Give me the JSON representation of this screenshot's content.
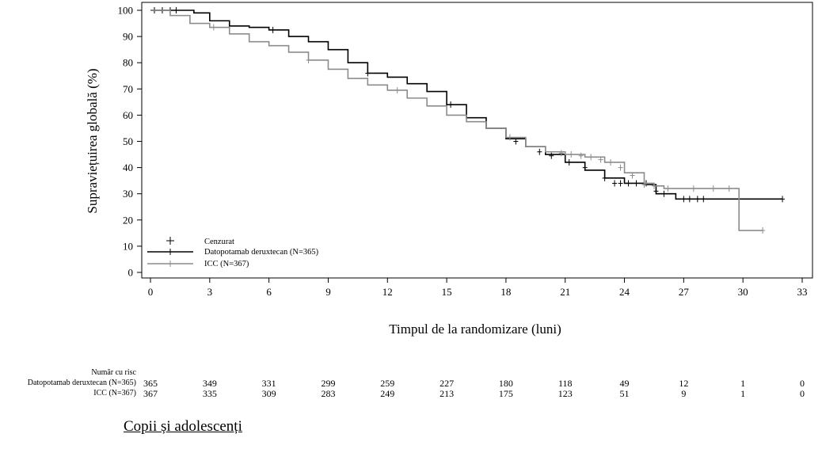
{
  "chart_data": {
    "type": "line",
    "title": "",
    "xlabel": "Timpul de la randomizare (luni)",
    "ylabel": "Supraviețuirea globală (%)",
    "xlim": [
      0,
      33
    ],
    "ylim": [
      0,
      100
    ],
    "x_ticks": [
      "0",
      "3",
      "6",
      "9",
      "12",
      "15",
      "18",
      "21",
      "24",
      "27",
      "30",
      "33"
    ],
    "y_ticks": [
      "0",
      "10",
      "20",
      "30",
      "40",
      "50",
      "60",
      "70",
      "80",
      "90",
      "100"
    ],
    "grid": false,
    "legend_position": "bottom-left",
    "censor_label": "Cenzurat",
    "series": [
      {
        "name": "Datopotamab deruxtecan (N=365)",
        "color": "#000000",
        "x": [
          0,
          1.5,
          2.2,
          3.0,
          4.0,
          5.0,
          6.0,
          7.0,
          8.0,
          9.0,
          10.0,
          11.0,
          12.0,
          13.0,
          14.0,
          15.0,
          16.0,
          17.0,
          18.0,
          19.0,
          20.0,
          21.0,
          22.0,
          23.0,
          24.0,
          25.0,
          25.6,
          26.6,
          28.0,
          30.0,
          32.0
        ],
        "y": [
          100,
          100,
          99,
          96,
          94,
          93.5,
          92.5,
          90,
          88,
          85,
          80,
          76,
          74.5,
          72,
          69,
          64,
          59,
          55,
          51,
          48,
          45,
          42,
          39,
          36,
          34,
          33.5,
          30,
          28,
          28,
          28,
          28
        ],
        "censored_x": [
          0.2,
          0.6,
          1.0,
          1.3,
          6.2,
          11.0,
          15.2,
          18.5,
          19.7,
          20.3,
          21.2,
          22.0,
          23.0,
          23.5,
          23.8,
          24.2,
          24.6,
          25.1,
          25.6,
          26.0,
          27.0,
          27.3,
          27.7,
          28.0,
          32.0
        ],
        "censored_y": [
          100,
          100,
          100,
          100,
          92.5,
          76,
          64,
          50,
          46,
          44.5,
          42,
          40,
          36,
          34,
          34,
          34,
          34,
          34,
          31,
          30,
          28,
          28,
          28,
          28,
          28
        ]
      },
      {
        "name": "ICC (N=367)",
        "color": "#8c8c8c",
        "x": [
          0,
          1.0,
          2.0,
          3.0,
          4.0,
          5.0,
          6.0,
          7.0,
          8.0,
          9.0,
          10.0,
          11.0,
          12.0,
          13.0,
          14.0,
          15.0,
          16.0,
          17.0,
          18.0,
          19.0,
          20.0,
          21.0,
          22.0,
          23.0,
          24.0,
          25.0,
          25.5,
          26.0,
          27.0,
          28.0,
          29.5,
          29.8,
          31.0
        ],
        "y": [
          100,
          98,
          95,
          93.5,
          91,
          88,
          86.5,
          84,
          81,
          77.5,
          74,
          71.5,
          69.5,
          66.5,
          63.5,
          60,
          57.5,
          55,
          51.5,
          48,
          46,
          45,
          44,
          42,
          38,
          34,
          33,
          32,
          32,
          32,
          32,
          16,
          16
        ],
        "censored_x": [
          3.2,
          8.0,
          12.5,
          18.2,
          20.8,
          21.3,
          21.8,
          22.3,
          22.8,
          23.3,
          23.8,
          24.4,
          25.0,
          25.5,
          26.2,
          27.5,
          28.5,
          29.3,
          31.0
        ],
        "censored_y": [
          93.5,
          81,
          69.5,
          51.5,
          45.5,
          45,
          44.5,
          44,
          43,
          42,
          40,
          37,
          33.5,
          33,
          32,
          32,
          32,
          32,
          16
        ]
      }
    ],
    "at_risk": {
      "header": "Număr cu risc",
      "times": [
        0,
        3,
        6,
        9,
        12,
        15,
        18,
        21,
        24,
        27,
        30,
        33
      ],
      "rows": [
        {
          "label": "Datopotamab deruxtecan (N=365)",
          "values": [
            "365",
            "349",
            "331",
            "299",
            "259",
            "227",
            "180",
            "118",
            "49",
            "12",
            "1",
            "0"
          ]
        },
        {
          "label": "ICC (N=367)",
          "values": [
            "367",
            "335",
            "309",
            "283",
            "249",
            "213",
            "175",
            "123",
            "51",
            "9",
            "1",
            "0"
          ]
        }
      ]
    }
  },
  "section_heading": "Copii și adolescenți"
}
